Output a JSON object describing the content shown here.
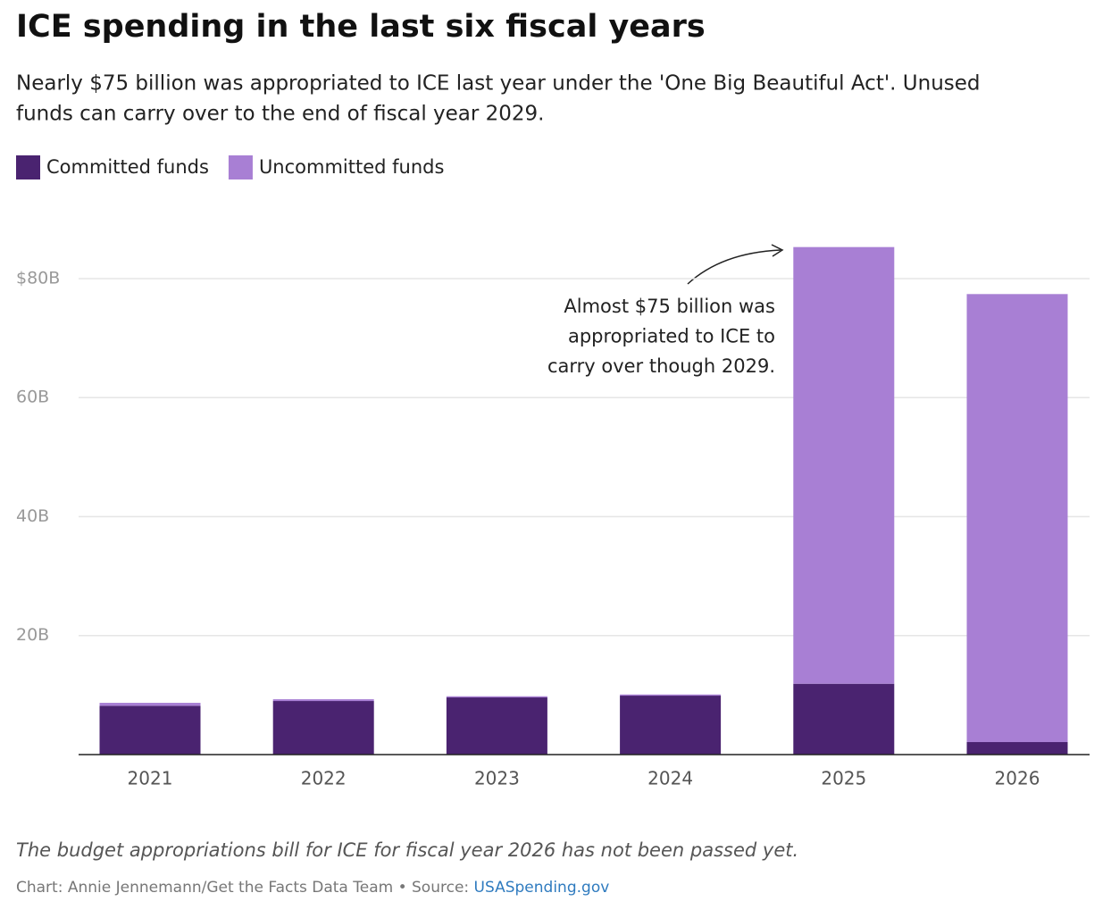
{
  "chart_data": {
    "type": "stacked-bar",
    "title": "ICE spending in the last six fiscal years",
    "subtitle": [
      "Nearly $75 billion was appropriated to ICE last year under the 'One Big Beautiful Act'. Unused",
      "funds can carry over to the end of fiscal year 2029."
    ],
    "categories": [
      "2021",
      "2022",
      "2023",
      "2024",
      "2025",
      "2026"
    ],
    "series": [
      {
        "name": "Committed funds",
        "color": "#4a2370",
        "values": [
          8.2,
          9.0,
          9.6,
          9.9,
          11.9,
          2.1
        ]
      },
      {
        "name": "Uncommitted funds",
        "color": "#a87fd4",
        "values": [
          0.5,
          0.3,
          0.2,
          0.2,
          73.4,
          75.3
        ]
      }
    ],
    "ylim": [
      0,
      86
    ],
    "yticks": [
      {
        "value": 20,
        "label": "20B"
      },
      {
        "value": 40,
        "label": "40B"
      },
      {
        "value": 60,
        "label": "60B"
      },
      {
        "value": 80,
        "label": "$80B"
      }
    ],
    "grid": true,
    "annotation": [
      "Almost $75 billion was",
      "appropriated to ICE to",
      "carry over though 2029."
    ],
    "note": "The budget appropriations bill for ICE for fiscal year 2026 has not been passed yet.",
    "credit": "Chart: Annie Jennemann/Get the Facts Data Team • Source: ",
    "source_link": "USASpending.gov"
  }
}
